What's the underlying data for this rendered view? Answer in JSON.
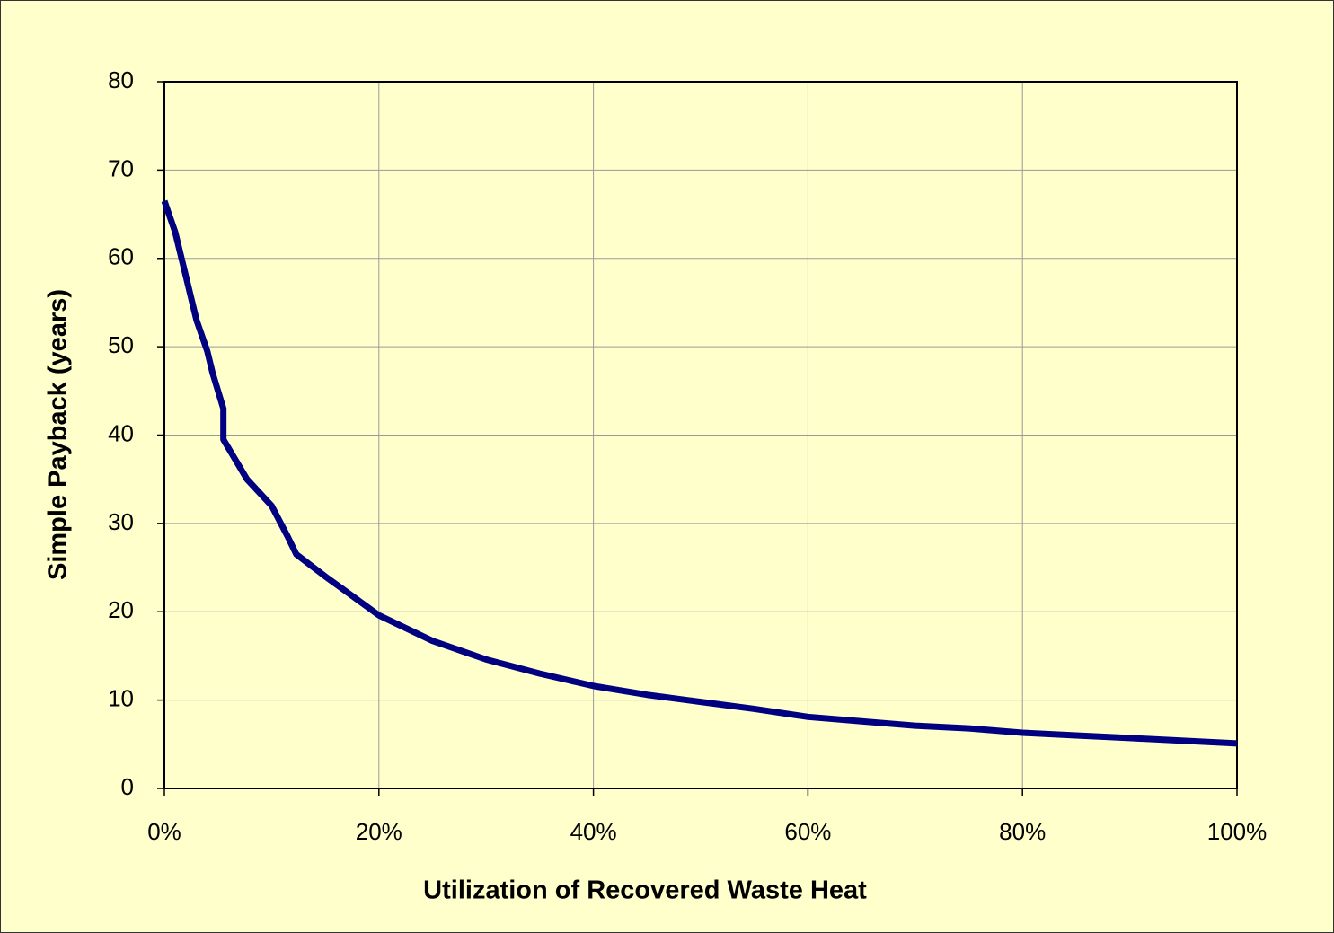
{
  "chart_data": {
    "type": "line",
    "x_label": "Utilization of Recovered Waste Heat",
    "y_label": "Simple Payback (years)",
    "x": [
      0,
      1,
      3,
      4,
      4.5,
      5.5,
      5.5,
      7.7,
      10,
      11.5,
      12.3,
      15,
      20,
      25,
      30,
      35,
      40,
      45,
      50,
      55,
      60,
      65,
      70,
      75,
      80,
      85,
      90,
      95,
      100
    ],
    "series": [
      {
        "name": "Simple Payback",
        "color": "#000080",
        "values": [
          66.5,
          63,
          53,
          49.5,
          47,
          43,
          39.5,
          35,
          32,
          28.5,
          26.5,
          24,
          19.6,
          16.7,
          14.6,
          13,
          11.6,
          10.6,
          9.8,
          9,
          8.1,
          7.6,
          7.1,
          6.8,
          6.3,
          6,
          5.7,
          5.4,
          5.1
        ]
      }
    ],
    "xlim": [
      0,
      100
    ],
    "xticks": [
      {
        "value": 0,
        "label": "0%"
      },
      {
        "value": 20,
        "label": "20%"
      },
      {
        "value": 40,
        "label": "40%"
      },
      {
        "value": 60,
        "label": "60%"
      },
      {
        "value": 80,
        "label": "80%"
      },
      {
        "value": 100,
        "label": "100%"
      }
    ],
    "ylim": [
      0,
      80
    ],
    "yticks": [
      0,
      10,
      20,
      30,
      40,
      50,
      60,
      70,
      80
    ],
    "grid": true
  }
}
